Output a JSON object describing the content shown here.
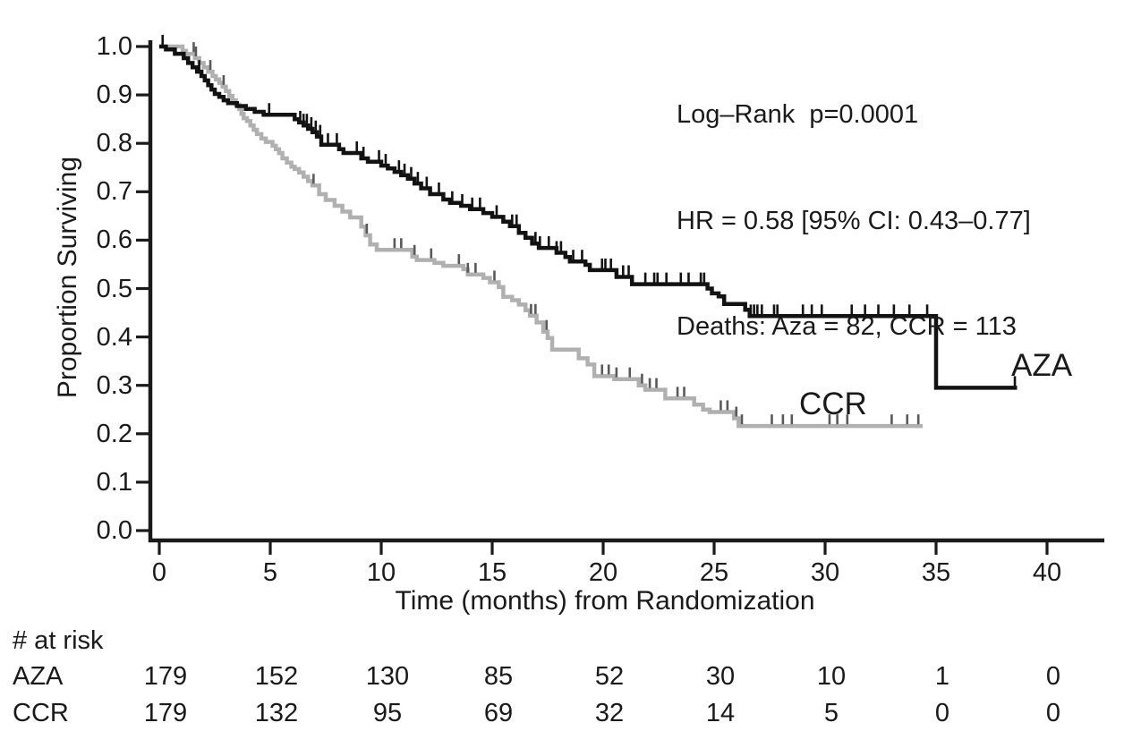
{
  "chart_data": {
    "type": "line",
    "subtype": "kaplan_meier_step",
    "title": "",
    "xlabel": "Time (months) from Randomization",
    "ylabel": "Proportion Surviving",
    "xlim": [
      0,
      43
    ],
    "ylim": [
      0.0,
      1.0
    ],
    "xticks": [
      0,
      5,
      10,
      15,
      20,
      25,
      30,
      35,
      40
    ],
    "ytick_values": [
      1.0,
      0.9,
      0.8,
      0.7,
      0.6,
      0.5,
      0.4,
      0.3,
      0.2,
      0.1,
      0.0
    ],
    "ytick_labels": [
      "1.0",
      "0.9",
      "0.8",
      "0.7",
      "0.6",
      "0.5",
      "0.4",
      "0.3",
      "0.2",
      "0.1",
      "0.0"
    ],
    "grid": false,
    "legend_position": "labels-at-curve-ends",
    "annotations": [
      "Log–Rank  p=0.0001",
      "HR = 0.58 [95% CI: 0.43–0.77]",
      "Deaths: Aza = 82, CCR = 113"
    ],
    "series": [
      {
        "name": "AZA",
        "color": "#121212",
        "censor_color": "#121212",
        "line_width": 4.5,
        "end_month": 38.65,
        "steps": [
          [
            0,
            1
          ],
          [
            0.3,
            0.994
          ],
          [
            0.7,
            0.985
          ],
          [
            1.1,
            0.976
          ],
          [
            1.3,
            0.966
          ],
          [
            1.5,
            0.957
          ],
          [
            1.7,
            0.948
          ],
          [
            1.9,
            0.939
          ],
          [
            2.05,
            0.93
          ],
          [
            2.2,
            0.92
          ],
          [
            2.35,
            0.911
          ],
          [
            2.5,
            0.902
          ],
          [
            2.7,
            0.896
          ],
          [
            2.9,
            0.889
          ],
          [
            3.1,
            0.883
          ],
          [
            3.5,
            0.877
          ],
          [
            3.9,
            0.871
          ],
          [
            4.3,
            0.865
          ],
          [
            4.7,
            0.859
          ],
          [
            6.1,
            0.85
          ],
          [
            6.3,
            0.843
          ],
          [
            6.5,
            0.837
          ],
          [
            6.7,
            0.83
          ],
          [
            6.9,
            0.823
          ],
          [
            7.1,
            0.814
          ],
          [
            7.3,
            0.797
          ],
          [
            8.1,
            0.788
          ],
          [
            8.3,
            0.78
          ],
          [
            9.1,
            0.769
          ],
          [
            9.4,
            0.762
          ],
          [
            10,
            0.754
          ],
          [
            10.3,
            0.748
          ],
          [
            10.6,
            0.741
          ],
          [
            10.9,
            0.734
          ],
          [
            11.2,
            0.727
          ],
          [
            11.5,
            0.717
          ],
          [
            11.8,
            0.707
          ],
          [
            12.2,
            0.695
          ],
          [
            12.8,
            0.684
          ],
          [
            13.1,
            0.677
          ],
          [
            13.6,
            0.671
          ],
          [
            14,
            0.664
          ],
          [
            14.6,
            0.656
          ],
          [
            15,
            0.648
          ],
          [
            15.5,
            0.638
          ],
          [
            15.8,
            0.629
          ],
          [
            16.2,
            0.615
          ],
          [
            16.5,
            0.605
          ],
          [
            16.8,
            0.593
          ],
          [
            17.1,
            0.584
          ],
          [
            17.9,
            0.574
          ],
          [
            18.3,
            0.565
          ],
          [
            18.5,
            0.556
          ],
          [
            19.2,
            0.549
          ],
          [
            19.4,
            0.538
          ],
          [
            20.6,
            0.524
          ],
          [
            21.3,
            0.509
          ],
          [
            24.7,
            0.5
          ],
          [
            24.9,
            0.49
          ],
          [
            25.2,
            0.484
          ],
          [
            25.45,
            0.468
          ],
          [
            26.4,
            0.456
          ],
          [
            26.6,
            0.443
          ],
          [
            35,
            0.295
          ]
        ],
        "censor_months": [
          0.15,
          1.8,
          4.95,
          6.35,
          6.5,
          6.65,
          6.85,
          7.05,
          7.25,
          7.6,
          8,
          8.9,
          9.2,
          9.9,
          10.2,
          10.8,
          11.05,
          11.35,
          11.65,
          12.05,
          12.6,
          13.2,
          13.65,
          14.1,
          14.45,
          15.2,
          15.9,
          16.1,
          16.95,
          17.15,
          17.55,
          17.9,
          18.1,
          18.65,
          19.05,
          19.95,
          20.1,
          20.35,
          20.9,
          21.15,
          21.9,
          22.3,
          22.45,
          22.85,
          23.5,
          23.85,
          24.4,
          24.55,
          26.65,
          26.8,
          26.95,
          27.15,
          27.7,
          27.85,
          29,
          29.4,
          29.85,
          31.2,
          31.8,
          32.4,
          33.1,
          33.8,
          34.6,
          38.55
        ]
      },
      {
        "name": "CCR",
        "color": "#b0b0b0",
        "censor_color": "#595959",
        "line_width": 4.5,
        "end_month": 34.4,
        "steps": [
          [
            0,
            1
          ],
          [
            1.05,
            0.991
          ],
          [
            1.2,
            0.985
          ],
          [
            1.6,
            0.976
          ],
          [
            1.8,
            0.966
          ],
          [
            2,
            0.957
          ],
          [
            2.2,
            0.948
          ],
          [
            2.4,
            0.939
          ],
          [
            2.55,
            0.932
          ],
          [
            2.7,
            0.925
          ],
          [
            2.85,
            0.917
          ],
          [
            3,
            0.908
          ],
          [
            3.15,
            0.898
          ],
          [
            3.3,
            0.889
          ],
          [
            3.45,
            0.88
          ],
          [
            3.6,
            0.871
          ],
          [
            3.7,
            0.861
          ],
          [
            3.8,
            0.852
          ],
          [
            3.95,
            0.846
          ],
          [
            4.1,
            0.837
          ],
          [
            4.25,
            0.828
          ],
          [
            4.4,
            0.819
          ],
          [
            4.6,
            0.81
          ],
          [
            4.8,
            0.803
          ],
          [
            5.1,
            0.795
          ],
          [
            5.25,
            0.788
          ],
          [
            5.4,
            0.78
          ],
          [
            5.55,
            0.769
          ],
          [
            5.75,
            0.76
          ],
          [
            5.95,
            0.752
          ],
          [
            6.1,
            0.747
          ],
          [
            6.3,
            0.74
          ],
          [
            6.5,
            0.731
          ],
          [
            6.7,
            0.722
          ],
          [
            6.9,
            0.713
          ],
          [
            7.2,
            0.695
          ],
          [
            7.5,
            0.683
          ],
          [
            7.9,
            0.671
          ],
          [
            8.25,
            0.659
          ],
          [
            8.6,
            0.647
          ],
          [
            9.1,
            0.628
          ],
          [
            9.3,
            0.61
          ],
          [
            9.5,
            0.591
          ],
          [
            9.8,
            0.58
          ],
          [
            11.4,
            0.566
          ],
          [
            11.6,
            0.559
          ],
          [
            12.4,
            0.553
          ],
          [
            12.8,
            0.547
          ],
          [
            13.7,
            0.54
          ],
          [
            13.9,
            0.529
          ],
          [
            14.6,
            0.522
          ],
          [
            14.9,
            0.513
          ],
          [
            15.3,
            0.503
          ],
          [
            15.5,
            0.483
          ],
          [
            15.9,
            0.476
          ],
          [
            16.2,
            0.467
          ],
          [
            16.5,
            0.455
          ],
          [
            16.7,
            0.444
          ],
          [
            17,
            0.43
          ],
          [
            17.3,
            0.411
          ],
          [
            17.5,
            0.398
          ],
          [
            17.7,
            0.374
          ],
          [
            18.9,
            0.356
          ],
          [
            19.3,
            0.343
          ],
          [
            19.6,
            0.319
          ],
          [
            20.5,
            0.313
          ],
          [
            21.6,
            0.3
          ],
          [
            21.9,
            0.291
          ],
          [
            22.8,
            0.273
          ],
          [
            24.1,
            0.26
          ],
          [
            24.5,
            0.25
          ],
          [
            24.8,
            0.245
          ],
          [
            25.9,
            0.232
          ],
          [
            26.1,
            0.216
          ]
        ],
        "censor_months": [
          1.55,
          1.65,
          2.3,
          2.9,
          6.95,
          9.35,
          10.6,
          10.9,
          11.5,
          12.25,
          13.5,
          13.9,
          14.25,
          15.1,
          16.75,
          16.95,
          17.45,
          19.95,
          20.25,
          20.6,
          21.2,
          21.75,
          22.1,
          22.4,
          23.35,
          23.65,
          25.3,
          25.6,
          26,
          26.25,
          27.6,
          28.1,
          28.5,
          30.2,
          30.55,
          31,
          33,
          33.7,
          34.2
        ]
      }
    ],
    "risk_table": {
      "title": "# at risk",
      "time_points": [
        0,
        5,
        10,
        15,
        20,
        25,
        30,
        35,
        40
      ],
      "rows": [
        {
          "name": "AZA",
          "counts": [
            "179",
            "152",
            "130",
            "85",
            "52",
            "30",
            "10",
            "1",
            "0"
          ]
        },
        {
          "name": "CCR",
          "counts": [
            "179",
            "132",
            "95",
            "69",
            "32",
            "14",
            "5",
            "0",
            "0"
          ]
        }
      ]
    }
  }
}
